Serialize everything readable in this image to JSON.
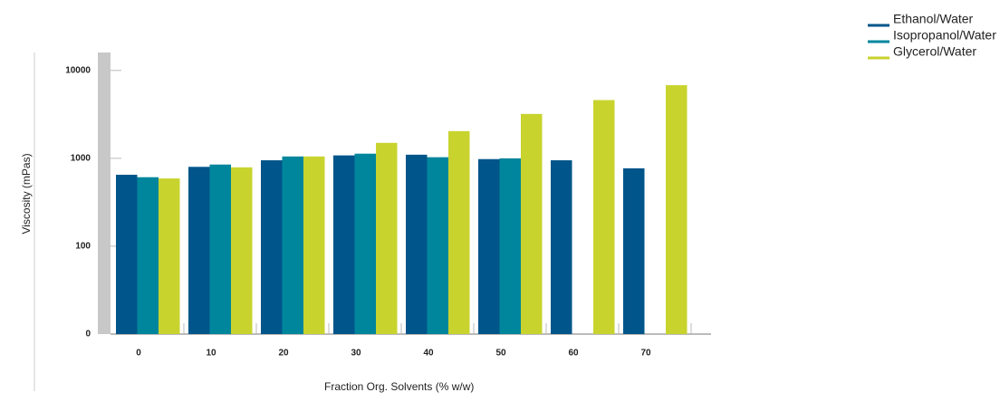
{
  "chart_data": {
    "type": "bar",
    "x_label": "Fraction Org. Solvents (% w/w)",
    "y_label": "Viscosity (mPas)",
    "categories": [
      "0",
      "10",
      "20",
      "30",
      "40",
      "50",
      "60",
      "70"
    ],
    "series": [
      {
        "name": "Ethanol/Water",
        "color": "#00558a",
        "values": [
          650,
          800,
          950,
          1080,
          1100,
          980,
          950,
          770
        ]
      },
      {
        "name": "Isopropanol/Water",
        "color": "#00869c",
        "values": [
          610,
          850,
          1050,
          1130,
          1030,
          1000,
          null,
          null
        ]
      },
      {
        "name": "Glycerol/Water",
        "color": "#c8d32e",
        "values": [
          590,
          790,
          1050,
          1500,
          2040,
          3200,
          4600,
          6800
        ]
      }
    ],
    "log_scale": true,
    "ylim": [
      10,
      16000
    ],
    "yticks": [
      {
        "value": 10,
        "label": "0"
      },
      100,
      1000,
      10000
    ],
    "legend": "top-right"
  }
}
